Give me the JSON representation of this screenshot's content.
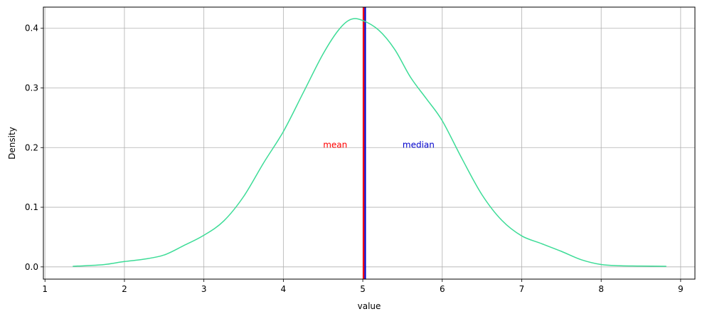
{
  "chart_data": {
    "type": "line",
    "title": "",
    "xlabel": "value",
    "ylabel": "Density",
    "xlim": [
      0.98,
      9.18
    ],
    "ylim": [
      -0.0205,
      0.4355
    ],
    "grid": true,
    "x_ticks": [
      1,
      2,
      3,
      4,
      5,
      6,
      7,
      8,
      9
    ],
    "y_ticks": [
      0.0,
      0.1,
      0.2,
      0.3,
      0.4
    ],
    "x_tick_labels": [
      "1",
      "2",
      "3",
      "4",
      "5",
      "6",
      "7",
      "8",
      "9"
    ],
    "y_tick_labels": [
      "0.0",
      "0.1",
      "0.2",
      "0.3",
      "0.4"
    ],
    "series": [
      {
        "color": "#3ddc97",
        "x": [
          1.35,
          1.5,
          1.75,
          2.0,
          2.25,
          2.5,
          2.75,
          3.0,
          3.25,
          3.5,
          3.75,
          4.0,
          4.25,
          4.5,
          4.7,
          4.85,
          5.0,
          5.2,
          5.4,
          5.6,
          5.8,
          6.0,
          6.25,
          6.5,
          6.75,
          7.0,
          7.25,
          7.5,
          7.75,
          8.0,
          8.25,
          8.5,
          8.82
        ],
        "y": [
          0.001,
          0.002,
          0.004,
          0.009,
          0.013,
          0.02,
          0.036,
          0.053,
          0.077,
          0.118,
          0.174,
          0.227,
          0.292,
          0.357,
          0.398,
          0.415,
          0.413,
          0.397,
          0.365,
          0.318,
          0.282,
          0.245,
          0.181,
          0.121,
          0.078,
          0.052,
          0.039,
          0.026,
          0.012,
          0.004,
          0.002,
          0.0015,
          0.001
        ]
      }
    ],
    "vlines": [
      {
        "name": "mean",
        "x": 5.01,
        "color": "#ff0000"
      },
      {
        "name": "median",
        "x": 5.03,
        "color": "#0000cc"
      }
    ],
    "annotations": [
      {
        "text": "mean",
        "x": 4.5,
        "y": 0.2,
        "color": "#ff0000"
      },
      {
        "text": "median",
        "x": 5.5,
        "y": 0.2,
        "color": "#0000cc"
      }
    ]
  }
}
